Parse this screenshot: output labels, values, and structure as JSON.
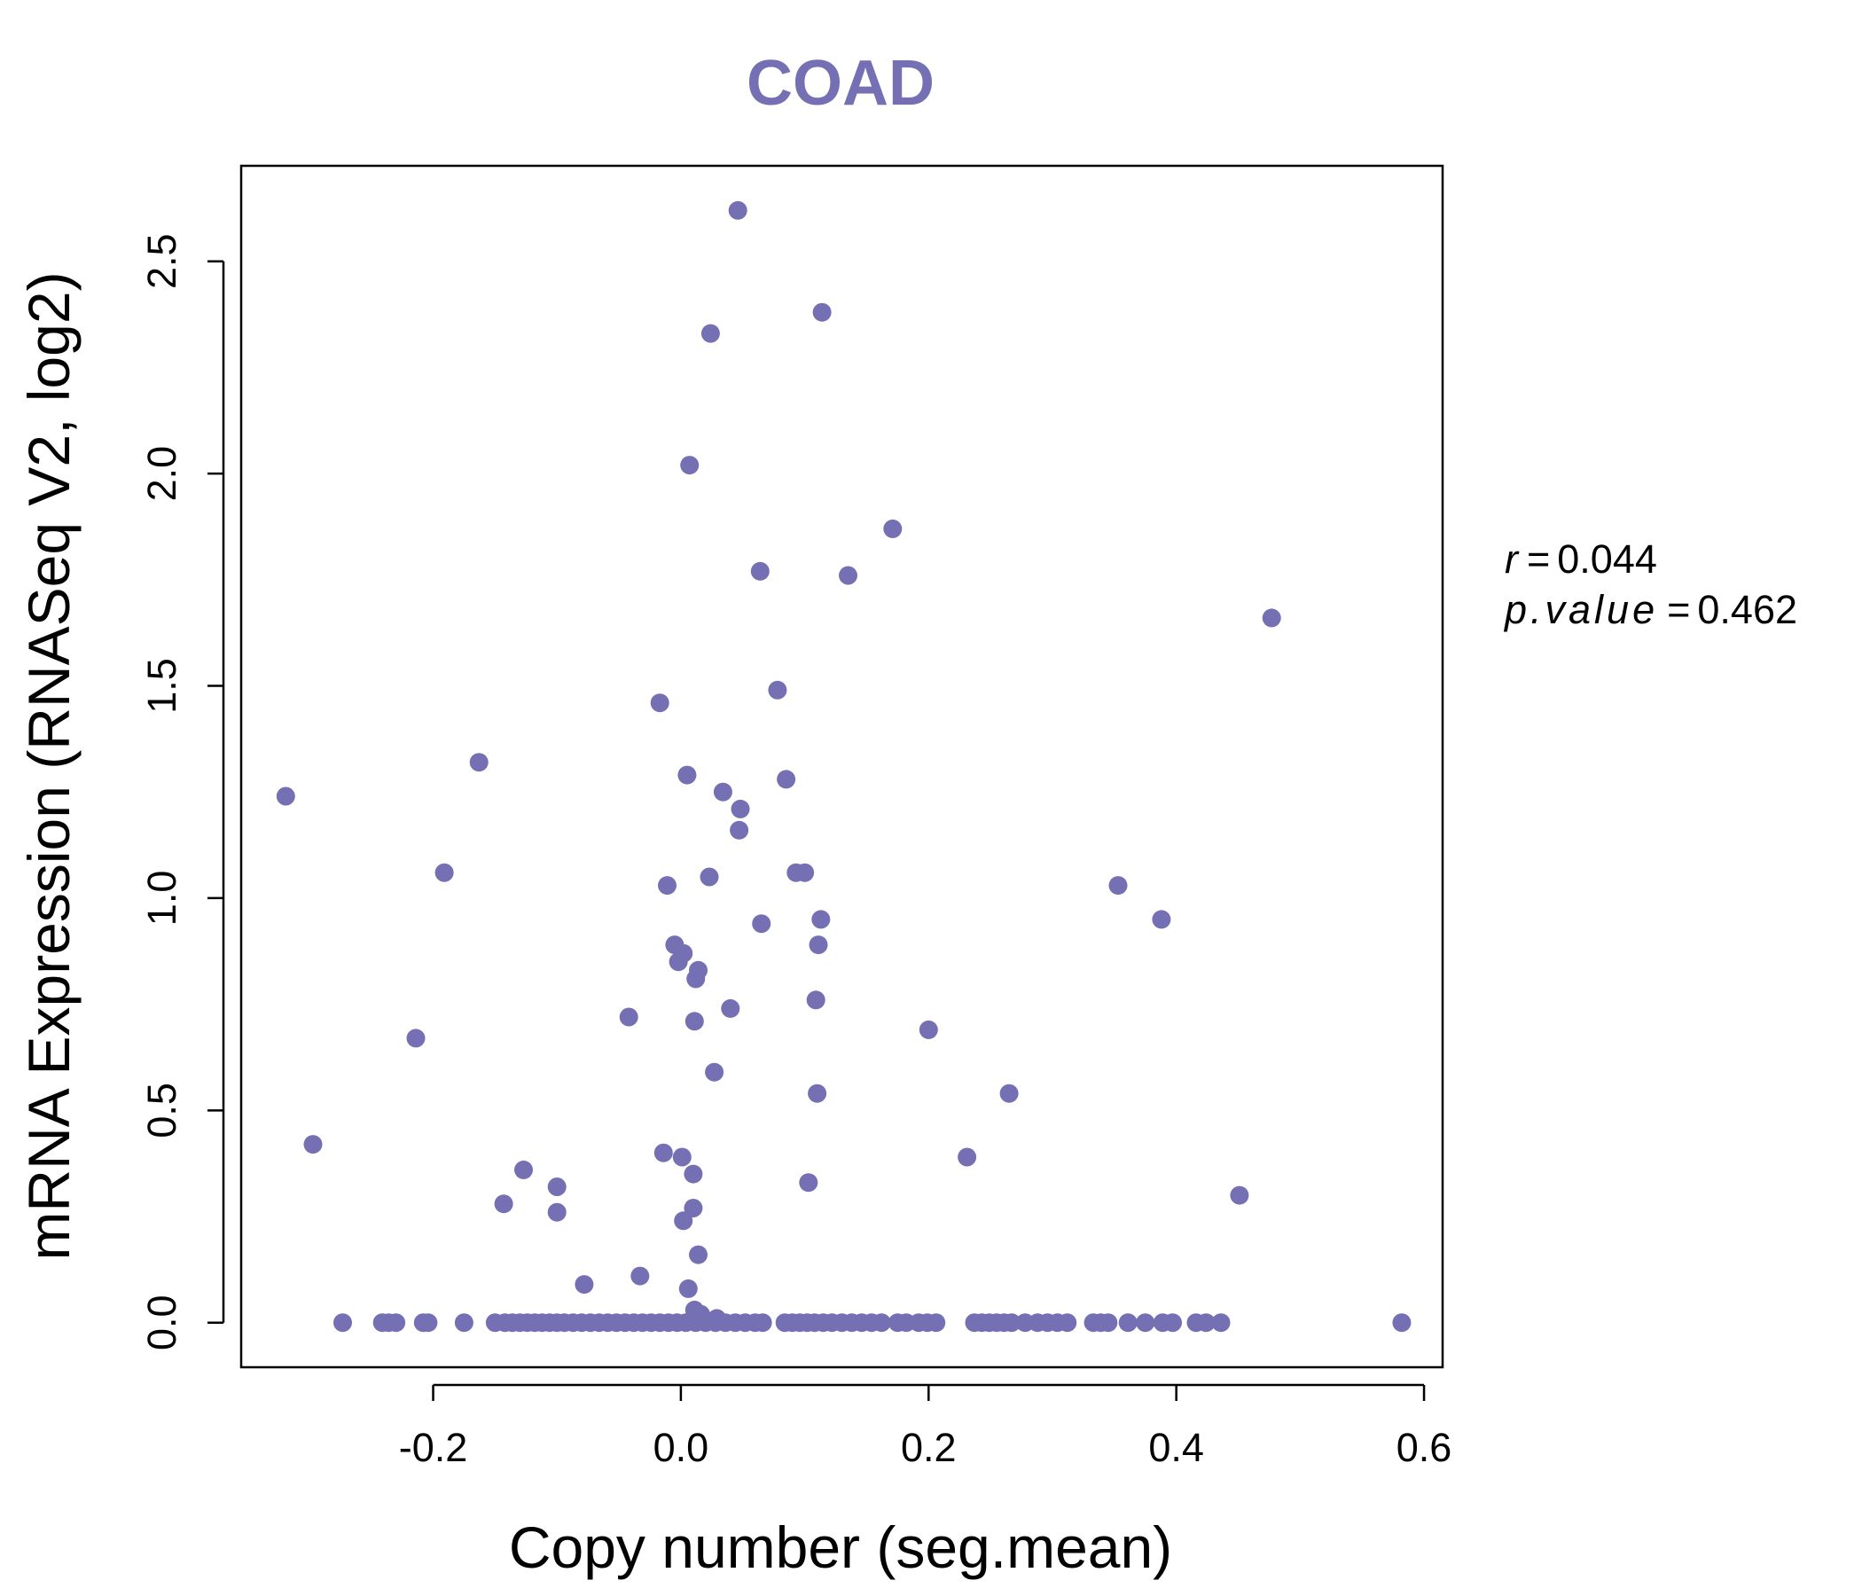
{
  "chart_data": {
    "type": "scatter",
    "title": "COAD",
    "xlabel": "Copy number (seg.mean)",
    "ylabel": "mRNA Expression (RNASeq V2, log2)",
    "xlim": [
      -0.355,
      0.615
    ],
    "ylim": [
      -0.105,
      2.725
    ],
    "x_ticks": [
      -0.2,
      0.0,
      0.2,
      0.4,
      0.6
    ],
    "x_tick_labels": [
      "-0.2",
      "0.0",
      "0.2",
      "0.4",
      "0.6"
    ],
    "y_ticks": [
      0.0,
      0.5,
      1.0,
      1.5,
      2.0,
      2.5
    ],
    "y_tick_labels": [
      "0.0",
      "0.5",
      "1.0",
      "1.5",
      "2.0",
      "2.5"
    ],
    "grid": false,
    "point_color": "#7570b3",
    "annotations": {
      "r_label": "r",
      "r_value": "0.044",
      "p_label": "p.value",
      "p_value": "0.462"
    },
    "points": [
      [
        0.046,
        2.62
      ],
      [
        0.114,
        2.38
      ],
      [
        0.024,
        2.33
      ],
      [
        0.007,
        2.02
      ],
      [
        0.171,
        1.87
      ],
      [
        0.064,
        1.77
      ],
      [
        0.135,
        1.76
      ],
      [
        0.477,
        1.66
      ],
      [
        0.078,
        1.49
      ],
      [
        -0.017,
        1.46
      ],
      [
        -0.163,
        1.32
      ],
      [
        0.005,
        1.29
      ],
      [
        0.085,
        1.28
      ],
      [
        -0.319,
        1.24
      ],
      [
        0.034,
        1.25
      ],
      [
        0.048,
        1.21
      ],
      [
        0.047,
        1.16
      ],
      [
        -0.191,
        1.06
      ],
      [
        0.093,
        1.06
      ],
      [
        0.1,
        1.06
      ],
      [
        0.023,
        1.05
      ],
      [
        -0.011,
        1.03
      ],
      [
        0.353,
        1.03
      ],
      [
        0.113,
        0.95
      ],
      [
        0.388,
        0.95
      ],
      [
        0.065,
        0.94
      ],
      [
        -0.005,
        0.89
      ],
      [
        0.002,
        0.87
      ],
      [
        0.111,
        0.89
      ],
      [
        -0.002,
        0.85
      ],
      [
        0.014,
        0.83
      ],
      [
        0.012,
        0.81
      ],
      [
        0.109,
        0.76
      ],
      [
        0.04,
        0.74
      ],
      [
        -0.042,
        0.72
      ],
      [
        0.011,
        0.71
      ],
      [
        0.2,
        0.69
      ],
      [
        -0.214,
        0.67
      ],
      [
        0.027,
        0.59
      ],
      [
        0.11,
        0.54
      ],
      [
        0.265,
        0.54
      ],
      [
        -0.297,
        0.42
      ],
      [
        -0.014,
        0.4
      ],
      [
        0.001,
        0.39
      ],
      [
        0.231,
        0.39
      ],
      [
        -0.127,
        0.36
      ],
      [
        0.01,
        0.35
      ],
      [
        0.103,
        0.33
      ],
      [
        -0.1,
        0.32
      ],
      [
        0.451,
        0.3
      ],
      [
        -0.143,
        0.28
      ],
      [
        0.01,
        0.27
      ],
      [
        -0.1,
        0.26
      ],
      [
        0.002,
        0.24
      ],
      [
        0.014,
        0.16
      ],
      [
        -0.033,
        0.11
      ],
      [
        -0.078,
        0.09
      ],
      [
        0.006,
        0.08
      ],
      [
        0.011,
        0.03
      ],
      [
        0.029,
        0.01
      ],
      [
        0.016,
        0.02
      ],
      [
        -0.273,
        0.0
      ],
      [
        -0.241,
        0.0
      ],
      [
        -0.236,
        0.0
      ],
      [
        -0.23,
        0.0
      ],
      [
        -0.208,
        0.0
      ],
      [
        -0.204,
        0.0
      ],
      [
        -0.175,
        0.0
      ],
      [
        -0.15,
        0.0
      ],
      [
        -0.142,
        0.0
      ],
      [
        -0.136,
        0.0
      ],
      [
        -0.13,
        0.0
      ],
      [
        -0.124,
        0.0
      ],
      [
        -0.118,
        0.0
      ],
      [
        -0.112,
        0.0
      ],
      [
        -0.106,
        0.0
      ],
      [
        -0.1,
        0.0
      ],
      [
        -0.094,
        0.0
      ],
      [
        -0.087,
        0.0
      ],
      [
        -0.08,
        0.0
      ],
      [
        -0.073,
        0.0
      ],
      [
        -0.066,
        0.0
      ],
      [
        -0.059,
        0.0
      ],
      [
        -0.052,
        0.0
      ],
      [
        -0.045,
        0.0
      ],
      [
        -0.038,
        0.0
      ],
      [
        -0.031,
        0.0
      ],
      [
        -0.024,
        0.0
      ],
      [
        -0.017,
        0.0
      ],
      [
        -0.01,
        0.0
      ],
      [
        -0.003,
        0.0
      ],
      [
        0.004,
        0.0
      ],
      [
        0.012,
        0.0
      ],
      [
        0.02,
        0.0
      ],
      [
        0.028,
        0.0
      ],
      [
        0.036,
        0.0
      ],
      [
        0.044,
        0.0
      ],
      [
        0.052,
        0.0
      ],
      [
        0.06,
        0.0
      ],
      [
        0.066,
        0.0
      ],
      [
        0.084,
        0.0
      ],
      [
        0.09,
        0.0
      ],
      [
        0.096,
        0.0
      ],
      [
        0.102,
        0.0
      ],
      [
        0.108,
        0.0
      ],
      [
        0.115,
        0.0
      ],
      [
        0.122,
        0.0
      ],
      [
        0.13,
        0.0
      ],
      [
        0.138,
        0.0
      ],
      [
        0.146,
        0.0
      ],
      [
        0.154,
        0.0
      ],
      [
        0.162,
        0.0
      ],
      [
        0.175,
        0.0
      ],
      [
        0.182,
        0.0
      ],
      [
        0.192,
        0.0
      ],
      [
        0.199,
        0.0
      ],
      [
        0.206,
        0.0
      ],
      [
        0.237,
        0.0
      ],
      [
        0.243,
        0.0
      ],
      [
        0.249,
        0.0
      ],
      [
        0.255,
        0.0
      ],
      [
        0.261,
        0.0
      ],
      [
        0.267,
        0.0
      ],
      [
        0.278,
        0.0
      ],
      [
        0.288,
        0.0
      ],
      [
        0.296,
        0.0
      ],
      [
        0.304,
        0.0
      ],
      [
        0.312,
        0.0
      ],
      [
        0.333,
        0.0
      ],
      [
        0.339,
        0.0
      ],
      [
        0.345,
        0.0
      ],
      [
        0.361,
        0.0
      ],
      [
        0.375,
        0.0
      ],
      [
        0.389,
        0.0
      ],
      [
        0.397,
        0.0
      ],
      [
        0.416,
        0.0
      ],
      [
        0.424,
        0.0
      ],
      [
        0.436,
        0.0
      ],
      [
        0.582,
        0.0
      ]
    ]
  }
}
